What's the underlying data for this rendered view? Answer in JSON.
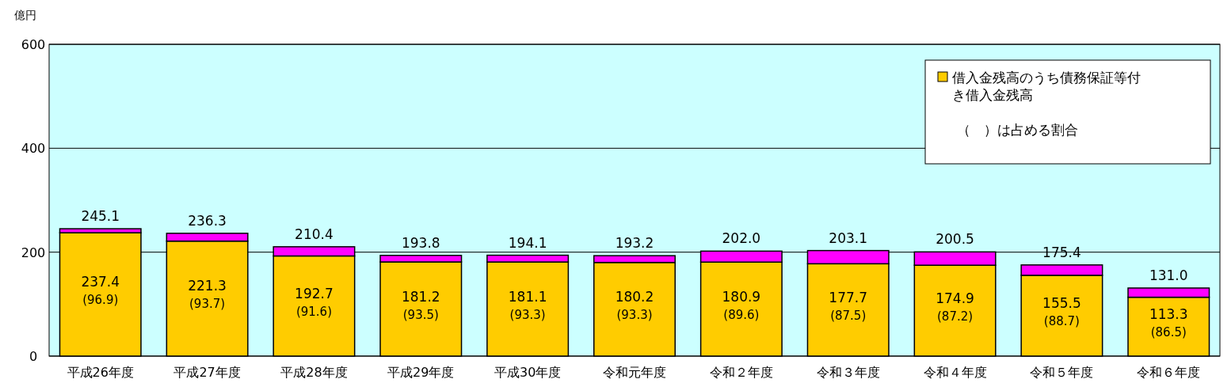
{
  "chart_data": {
    "type": "bar",
    "stacked": true,
    "ylabel": "億円",
    "categories": [
      "平成26年度",
      "平成27年度",
      "平成28年度",
      "平成29年度",
      "平成30年度",
      "令和元年度",
      "令和２年度",
      "令和３年度",
      "令和４年度",
      "令和５年度",
      "令和６年度"
    ],
    "series": [
      {
        "name": "借入金残高のうち債務保証等付き借入金残高",
        "color": "#ffcc00",
        "values": [
          237.4,
          221.3,
          192.7,
          181.2,
          181.1,
          180.2,
          180.9,
          177.7,
          174.9,
          155.5,
          113.3
        ],
        "value_labels": [
          "237.4\n(96.9)",
          "221.3\n(93.7)",
          "192.7\n(91.6)",
          "181.2\n(93.5)",
          "181.1\n(93.3)",
          "180.2\n(93.3)",
          "180.9\n(89.6)",
          "177.7\n(87.5)",
          "174.9\n(87.2)",
          "155.5\n(88.7)",
          "113.3\n(86.5)"
        ]
      },
      {
        "color": "#ff00ff",
        "values": [
          7.7,
          15.0,
          17.7,
          12.6,
          13.0,
          13.0,
          21.1,
          25.4,
          25.6,
          19.9,
          17.7
        ]
      }
    ],
    "totals": [
      "245.1",
      "236.3",
      "210.4",
      "193.8",
      "194.1",
      "193.2",
      "202.0",
      "203.1",
      "200.5",
      "175.4",
      "131.0"
    ],
    "ylim": [
      0,
      600
    ],
    "yticks": [
      0,
      200,
      400,
      600
    ],
    "grid": "y",
    "legend": "top right",
    "annotations": [
      "（　）は占める割合"
    ]
  }
}
